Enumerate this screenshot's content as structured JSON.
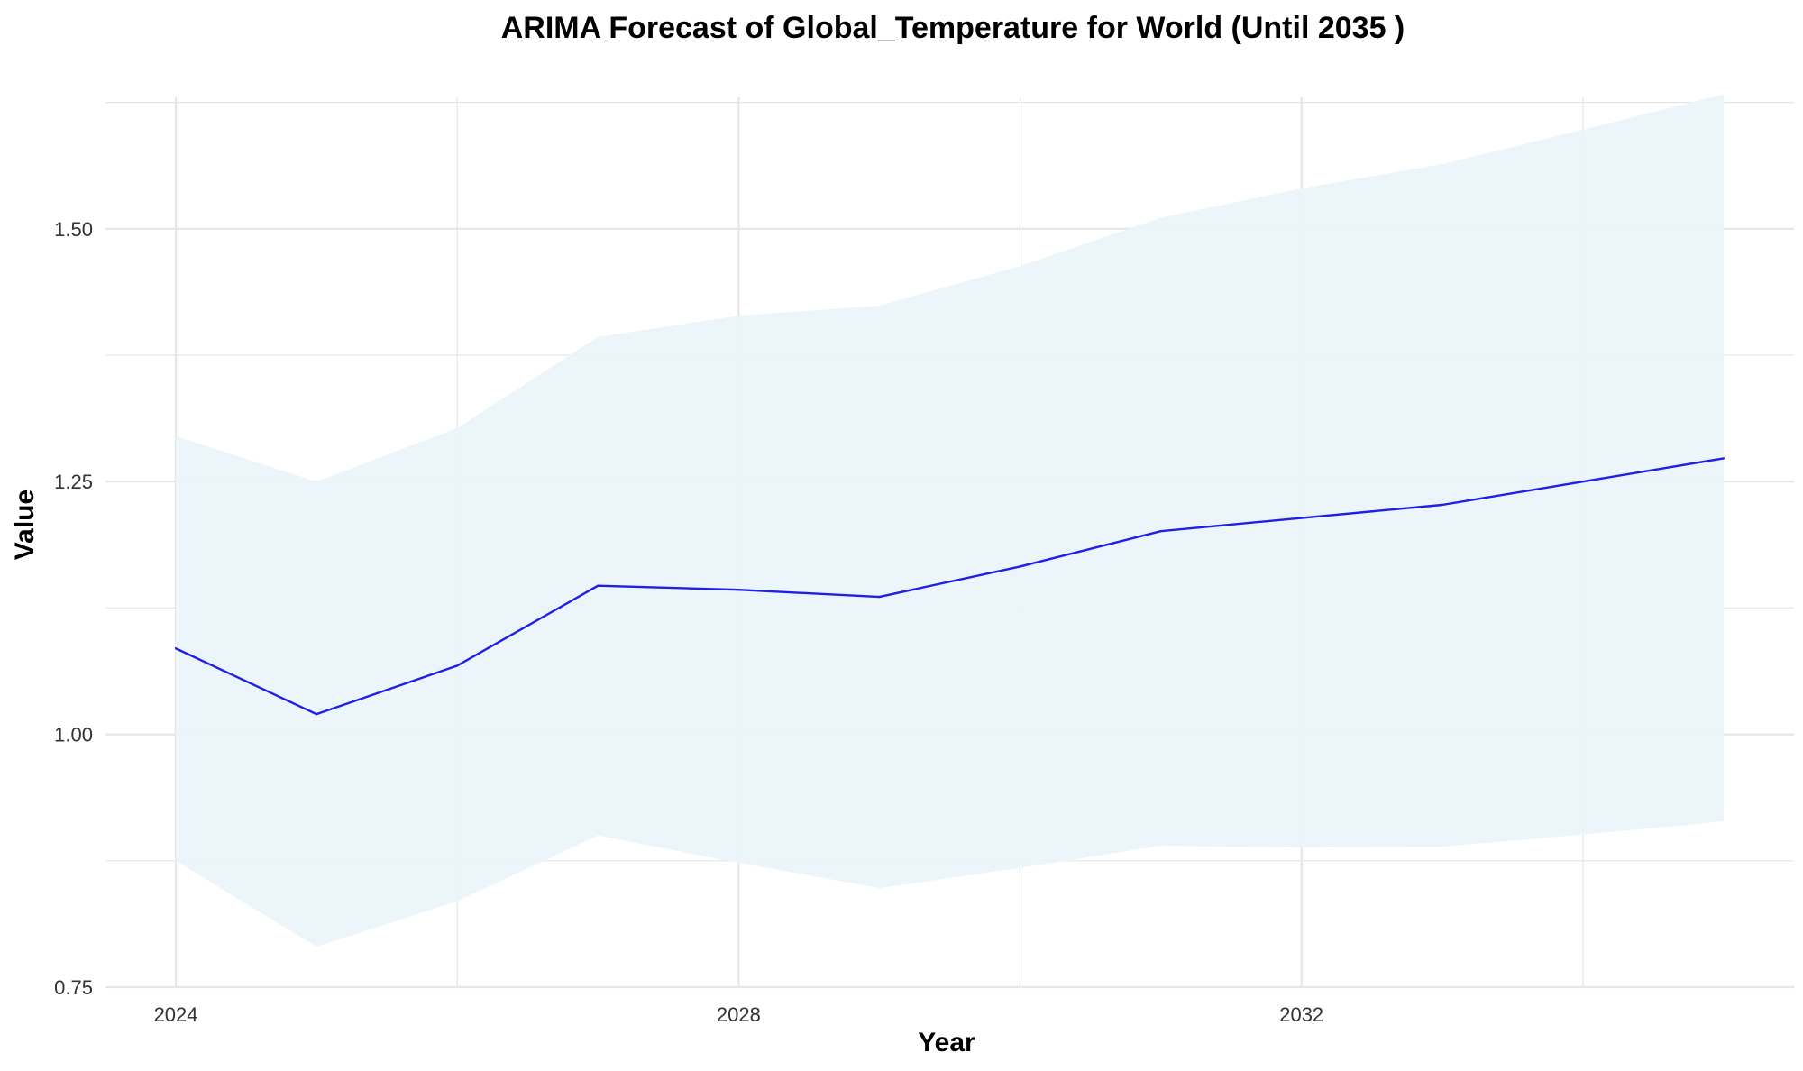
{
  "chart_data": {
    "type": "line",
    "title": "ARIMA Forecast of Global_Temperature for World (Until 2035 )",
    "xlabel": "Year",
    "ylabel": "Value",
    "x_ticks": [
      "2024",
      "2028",
      "2032"
    ],
    "y_ticks": [
      "0.75",
      "1.00",
      "1.25",
      "1.50"
    ],
    "xlim": [
      2023.5,
      2035.5
    ],
    "ylim": [
      0.75,
      1.63
    ],
    "grid": true,
    "legend": "none",
    "colors": {
      "line": "#1f1fe6",
      "ribbon": "#ebf4fa",
      "grid": "#e6e6e6"
    },
    "series": [
      {
        "x": [
          2024,
          2025,
          2026,
          2027,
          2028,
          2029,
          2030,
          2031,
          2032,
          2033,
          2034,
          2035
        ],
        "values": [
          1.085,
          1.02,
          1.068,
          1.147,
          1.143,
          1.136,
          1.166,
          1.201,
          1.214,
          1.227,
          1.25,
          1.273
        ],
        "lower": [
          0.875,
          0.79,
          0.835,
          0.9,
          0.873,
          0.848,
          0.868,
          0.89,
          0.888,
          0.889,
          0.901,
          0.914
        ],
        "upper": [
          1.295,
          1.25,
          1.303,
          1.393,
          1.414,
          1.424,
          1.463,
          1.511,
          1.54,
          1.564,
          1.598,
          1.633
        ]
      }
    ]
  }
}
